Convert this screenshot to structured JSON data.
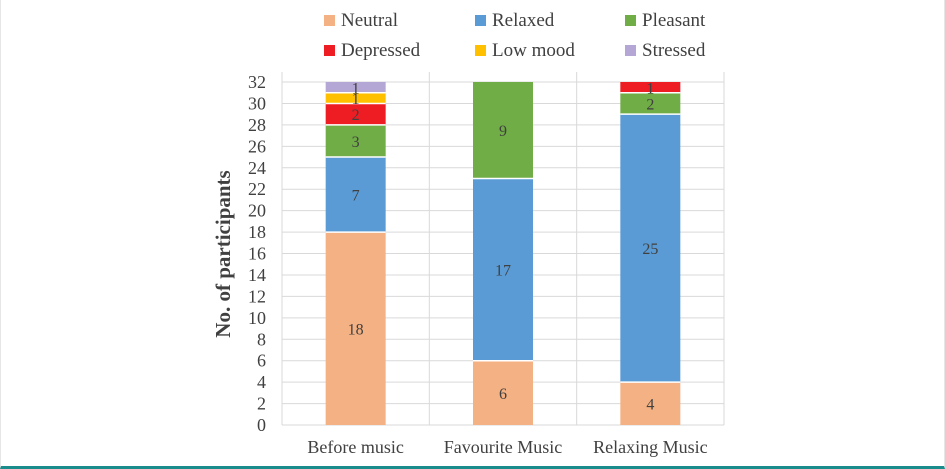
{
  "chart_data": {
    "type": "bar",
    "stacked": true,
    "title": "",
    "xlabel": "",
    "ylabel": "No. of participants",
    "ylim": [
      0,
      32
    ],
    "yticks": [
      0,
      2,
      4,
      6,
      8,
      10,
      12,
      14,
      16,
      18,
      20,
      22,
      24,
      26,
      28,
      30,
      32
    ],
    "grid": true,
    "legend_position": "top",
    "categories": [
      "Before music",
      "Favourite Music",
      "Relaxing Music"
    ],
    "series": [
      {
        "name": "Neutral",
        "color": "#f4b183",
        "values": [
          18,
          6,
          4
        ]
      },
      {
        "name": "Relaxed",
        "color": "#5b9bd5",
        "values": [
          7,
          17,
          25
        ]
      },
      {
        "name": "Pleasant",
        "color": "#70ad47",
        "values": [
          3,
          9,
          2
        ]
      },
      {
        "name": "Depressed",
        "color": "#ee1c23",
        "values": [
          2,
          0,
          1
        ]
      },
      {
        "name": "Low mood",
        "color": "#ffc000",
        "values": [
          1,
          0,
          0
        ]
      },
      {
        "name": "Stressed",
        "color": "#b4a7d6",
        "values": [
          1,
          0,
          0
        ]
      }
    ],
    "data_labels": [
      [
        "18",
        "7",
        "3",
        "2",
        "1",
        "1"
      ],
      [
        "6",
        "17",
        "9",
        "",
        "",
        ""
      ],
      [
        "4",
        "25",
        "2",
        "1",
        "",
        ""
      ]
    ]
  }
}
